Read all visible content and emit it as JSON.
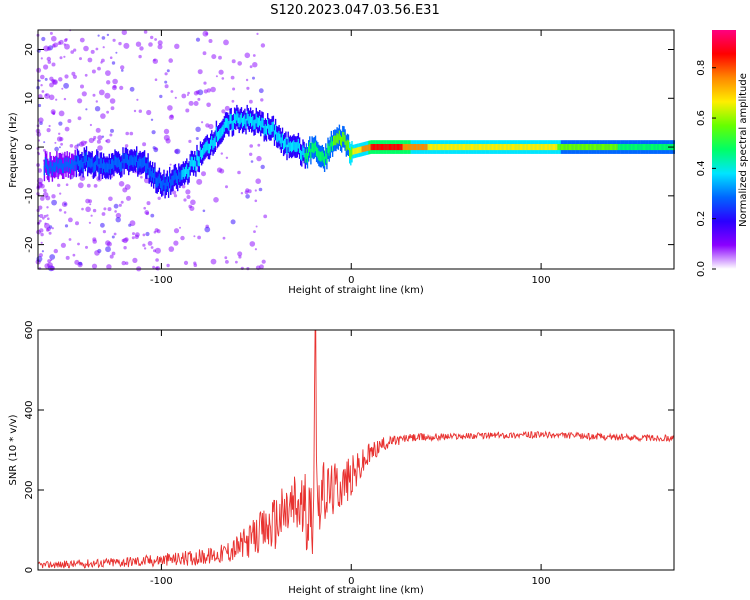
{
  "title": "S120.2023.047.03.56.E31",
  "chart_data": [
    {
      "type": "heatmap",
      "xlabel": "Height of straight line (km)",
      "ylabel": "Frequency (Hz)",
      "xlim": [
        -165,
        170
      ],
      "ylim": [
        -25,
        24
      ],
      "xticks": [
        -100,
        0,
        100
      ],
      "xtick_labels": [
        "-100",
        "0",
        "100"
      ],
      "yticks": [
        -20,
        -10,
        0,
        10,
        20
      ],
      "ytick_labels": [
        "-20",
        "-10",
        "0",
        "10",
        "20"
      ],
      "colorbar": {
        "label": "Normalized spectral amplitude",
        "range": [
          0,
          0.95
        ],
        "ticks": [
          0.0,
          0.2,
          0.4,
          0.6,
          0.8
        ],
        "tick_labels": [
          "0.0",
          "0.2",
          "0.4",
          "0.6",
          "0.8"
        ],
        "colormap": [
          "#ffffff",
          "#8a00ff",
          "#2a00ff",
          "#0066ff",
          "#00e5ff",
          "#00ff66",
          "#66ff00",
          "#ffee00",
          "#ff8800",
          "#ff0000",
          "#ff0080"
        ]
      },
      "ridge": {
        "x": [
          -150,
          -140,
          -130,
          -120,
          -110,
          -100,
          -90,
          -80,
          -70,
          -60,
          -50,
          -40,
          -35,
          -30,
          -25,
          -20,
          -15,
          -10,
          -5,
          0,
          10,
          20,
          40,
          60,
          80,
          100,
          120,
          140,
          160,
          170
        ],
        "freq": [
          -4,
          -3,
          -4,
          -3,
          -3,
          -8,
          -6,
          -2,
          3,
          6,
          5,
          3,
          0,
          1,
          -2,
          0,
          -3,
          1,
          2,
          -1,
          0,
          0,
          0,
          0,
          0,
          0,
          0,
          0,
          0,
          0
        ],
        "amp": [
          0.25,
          0.3,
          0.3,
          0.3,
          0.3,
          0.3,
          0.35,
          0.35,
          0.35,
          0.35,
          0.4,
          0.4,
          0.4,
          0.4,
          0.45,
          0.5,
          0.5,
          0.55,
          0.6,
          0.65,
          0.85,
          0.9,
          0.75,
          0.7,
          0.7,
          0.72,
          0.55,
          0.55,
          0.5,
          0.5
        ]
      }
    },
    {
      "type": "line",
      "xlabel": "Height of straight line (km)",
      "ylabel": "SNR (10 * v/v)",
      "xlim": [
        -165,
        170
      ],
      "ylim": [
        0,
        600
      ],
      "xticks": [
        -100,
        0,
        100
      ],
      "xtick_labels": [
        "-100",
        "0",
        "100"
      ],
      "yticks": [
        0,
        200,
        400,
        600
      ],
      "ytick_labels": [
        "0",
        "200",
        "400",
        "600"
      ],
      "color": "#e8312f",
      "series": [
        {
          "x": [
            -165,
            -150,
            -130,
            -110,
            -90,
            -80,
            -70,
            -60,
            -55,
            -50,
            -45,
            -40,
            -35,
            -30,
            -25,
            -20,
            -19,
            -18,
            -15,
            -10,
            -5,
            0,
            5,
            10,
            15,
            20,
            30,
            40,
            60,
            80,
            100,
            120,
            140,
            160,
            170
          ],
          "y": [
            12,
            14,
            18,
            22,
            28,
            32,
            38,
            55,
            70,
            85,
            100,
            120,
            140,
            160,
            150,
            130,
            600,
            180,
            190,
            200,
            215,
            230,
            260,
            290,
            310,
            320,
            330,
            332,
            335,
            337,
            338,
            335,
            332,
            330,
            330
          ],
          "noise": [
            8,
            10,
            12,
            15,
            18,
            20,
            22,
            35,
            40,
            50,
            60,
            70,
            80,
            90,
            95,
            95,
            0,
            90,
            80,
            70,
            60,
            55,
            40,
            30,
            20,
            15,
            10,
            10,
            8,
            8,
            8,
            8,
            8,
            8,
            8
          ]
        }
      ]
    }
  ]
}
